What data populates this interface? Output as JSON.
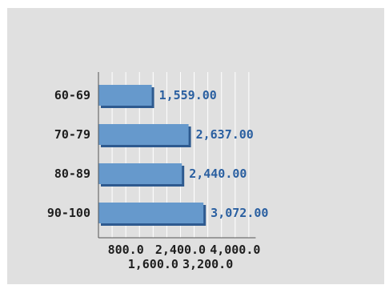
{
  "chart_data": {
    "type": "bar",
    "orientation": "horizontal",
    "categories": [
      "60-69",
      "70-79",
      "80-89",
      "90-100"
    ],
    "values": [
      1559.0,
      2637.0,
      2440.0,
      3072.0
    ],
    "value_labels": [
      "1,559.00",
      "2,637.00",
      "2,440.00",
      "3,072.00"
    ],
    "xlim": [
      0,
      4600
    ],
    "xticks": [
      800.0,
      1600.0,
      2400.0,
      3200.0,
      4000.0
    ],
    "xtick_labels": [
      "800.0",
      "1,600.0",
      "2,400.0",
      "3,200.0",
      "4,000.0"
    ],
    "grid": true,
    "colors": {
      "bar": "#6699cc",
      "bar_edge": "#2e5a8f",
      "value_text": "#2a5fa0",
      "background": "#e0e0e0",
      "grid": "#ffffff"
    }
  }
}
